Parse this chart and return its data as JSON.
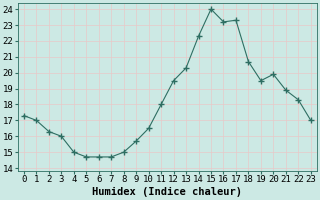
{
  "x": [
    0,
    1,
    2,
    3,
    4,
    5,
    6,
    7,
    8,
    9,
    10,
    11,
    12,
    13,
    14,
    15,
    16,
    17,
    18,
    19,
    20,
    21,
    22,
    23
  ],
  "y": [
    17.3,
    17.0,
    16.3,
    16.0,
    15.0,
    14.7,
    14.7,
    14.7,
    15.0,
    15.7,
    16.5,
    18.0,
    19.5,
    20.3,
    22.3,
    24.0,
    23.2,
    23.3,
    20.7,
    19.5,
    19.9,
    18.9,
    18.3,
    17.0
  ],
  "line_color": "#2e6e62",
  "marker": "+",
  "marker_size": 5,
  "bg_color": "#cce9e4",
  "grid_color": "#e8c8c8",
  "xlabel": "Humidex (Indice chaleur)",
  "xlabel_fontsize": 7.5,
  "ylabel_ticks": [
    14,
    15,
    16,
    17,
    18,
    19,
    20,
    21,
    22,
    23,
    24
  ],
  "ylim": [
    13.8,
    24.4
  ],
  "xlim": [
    -0.5,
    23.5
  ],
  "tick_fontsize": 6.5,
  "title": ""
}
